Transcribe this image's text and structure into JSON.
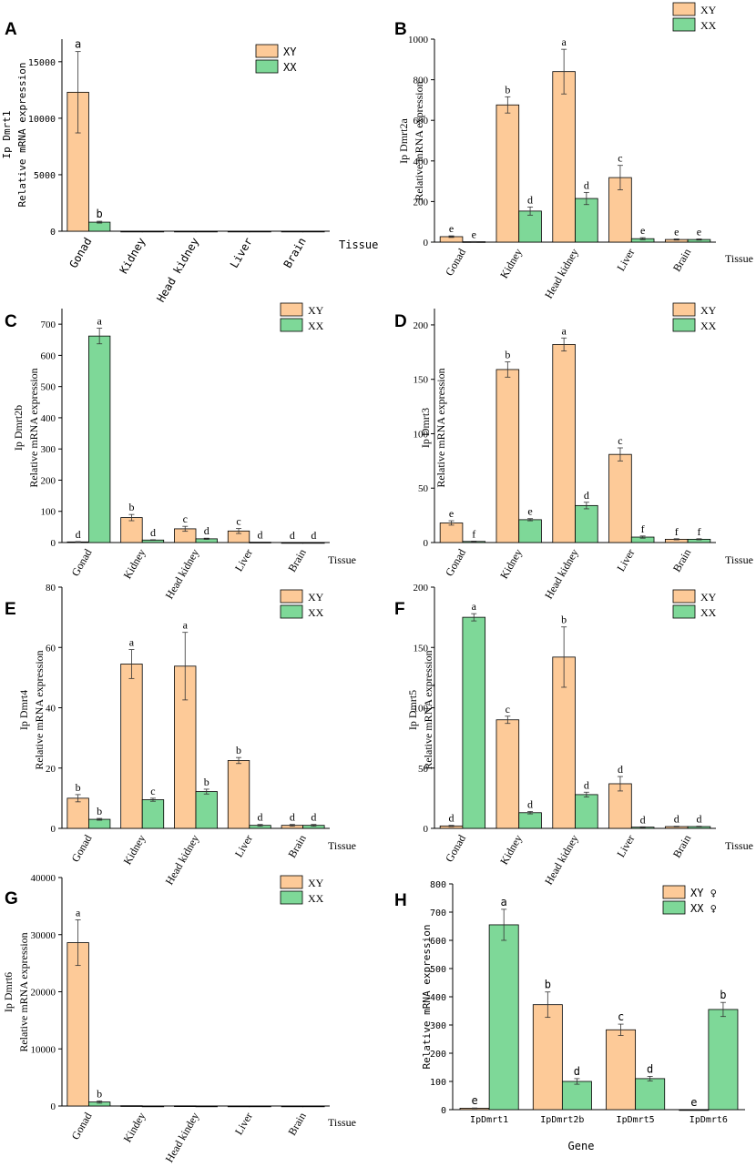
{
  "colors": {
    "xy": "#FDCA98",
    "xx": "#7ED898",
    "axis": "#000000"
  },
  "chart_data": [
    {
      "panel": "A",
      "type": "bar",
      "font": "mono",
      "ylabel_lines": [
        "Ip Dmrt1",
        "Relative mRNA expression"
      ],
      "xlabel": "Tissue",
      "categories": [
        "Gonad",
        "Kidney",
        "Head kidney",
        "Liver",
        "Brain"
      ],
      "ylim": [
        0,
        17000
      ],
      "yticks": [
        0,
        5000,
        10000,
        15000
      ],
      "legend": [
        "XY",
        "XX"
      ],
      "series": [
        {
          "name": "XY",
          "values": [
            12300,
            0,
            0,
            0,
            0
          ],
          "errors": [
            3600,
            0,
            0,
            0,
            0
          ],
          "labels": [
            "a",
            "",
            "",
            "",
            ""
          ]
        },
        {
          "name": "XX",
          "values": [
            800,
            0,
            0,
            0,
            0
          ],
          "errors": [
            80,
            0,
            0,
            0,
            0
          ],
          "labels": [
            "b",
            "",
            "",
            "",
            ""
          ]
        }
      ]
    },
    {
      "panel": "B",
      "type": "bar",
      "font": "serif",
      "ylabel_lines": [
        "Ip Dmrt2a",
        "Relative mRNA expression"
      ],
      "xlabel": "Tissue",
      "categories": [
        "Gonad",
        "Kidney",
        "Head kidney",
        "Liver",
        "Brain"
      ],
      "ylim": [
        0,
        1000
      ],
      "yticks": [
        0,
        200,
        400,
        600,
        800,
        1000
      ],
      "legend": [
        "XY",
        "XX"
      ],
      "series": [
        {
          "name": "XY",
          "values": [
            27,
            676,
            840,
            318,
            13
          ],
          "errors": [
            4,
            40,
            110,
            60,
            3
          ],
          "labels": [
            "e",
            "b",
            "a",
            "c",
            "e"
          ]
        },
        {
          "name": "XX",
          "values": [
            2,
            153,
            215,
            17,
            13
          ],
          "errors": [
            1,
            20,
            30,
            5,
            3
          ],
          "labels": [
            "e",
            "d",
            "d",
            "e",
            "e"
          ]
        }
      ]
    },
    {
      "panel": "C",
      "type": "bar",
      "font": "serif",
      "ylabel_lines": [
        "Ip Dmrt2b",
        "Relative mRNA expression"
      ],
      "xlabel": "Tissue",
      "categories": [
        "Gonad",
        "Kidney",
        "Head kidney",
        "Liver",
        "Brain"
      ],
      "ylim": [
        0,
        750
      ],
      "yticks": [
        0,
        100,
        200,
        300,
        400,
        500,
        600,
        700
      ],
      "legend": [
        "XY",
        "XX"
      ],
      "series": [
        {
          "name": "XY",
          "values": [
            2,
            80,
            44,
            37,
            0
          ],
          "errors": [
            1,
            10,
            8,
            8,
            0
          ],
          "labels": [
            "d",
            "b",
            "c",
            "c",
            "d"
          ]
        },
        {
          "name": "XX",
          "values": [
            662,
            8,
            12,
            1,
            0
          ],
          "errors": [
            25,
            1,
            2,
            0,
            0
          ],
          "labels": [
            "a",
            "d",
            "d",
            "d",
            "d"
          ]
        }
      ]
    },
    {
      "panel": "D",
      "type": "bar",
      "font": "serif",
      "ylabel_lines": [
        "Ip Dmrt3",
        "Relative mRNA expression"
      ],
      "xlabel": "Tissue",
      "categories": [
        "Gonad",
        "Kidney",
        "Head kidney",
        "Liver",
        "Brain"
      ],
      "ylim": [
        0,
        215
      ],
      "yticks": [
        0,
        50,
        100,
        150,
        200
      ],
      "legend": [
        "XY",
        "XX"
      ],
      "series": [
        {
          "name": "XY",
          "values": [
            18,
            159,
            182,
            81,
            3
          ],
          "errors": [
            2,
            7,
            6,
            6,
            0.5
          ],
          "labels": [
            "e",
            "b",
            "a",
            "c",
            "f"
          ]
        },
        {
          "name": "XX",
          "values": [
            1,
            21,
            34,
            5,
            3
          ],
          "errors": [
            0.3,
            1,
            3,
            1,
            0.5
          ],
          "labels": [
            "f",
            "e",
            "d",
            "f",
            "f"
          ]
        }
      ]
    },
    {
      "panel": "E",
      "type": "bar",
      "font": "serif",
      "ylabel_lines": [
        "Ip Dmrt4",
        "Relative mRNA expression"
      ],
      "xlabel": "Tissue",
      "categories": [
        "Gonad",
        "Kidney",
        "Head kidney",
        "Liver",
        "Brain"
      ],
      "ylim": [
        0,
        80
      ],
      "yticks": [
        0,
        20,
        40,
        60,
        80
      ],
      "legend": [
        "XY",
        "XX"
      ],
      "series": [
        {
          "name": "XY",
          "values": [
            10,
            54.5,
            53.8,
            22.5,
            1
          ],
          "errors": [
            1.2,
            4.8,
            11.2,
            1,
            0.3
          ],
          "labels": [
            "b",
            "a",
            "a",
            "b",
            "d"
          ]
        },
        {
          "name": "XX",
          "values": [
            3,
            9.5,
            12.2,
            1,
            1
          ],
          "errors": [
            0.3,
            0.5,
            0.8,
            0.3,
            0.3
          ],
          "labels": [
            "b",
            "c",
            "b",
            "d",
            "d"
          ]
        }
      ]
    },
    {
      "panel": "F",
      "type": "bar",
      "font": "serif",
      "ylabel_lines": [
        "Ip Dmrt5",
        "Relative mRNA expression"
      ],
      "xlabel": "Tissue",
      "categories": [
        "Gonad",
        "Kidney",
        "Head kidney",
        "Liver",
        "Brain"
      ],
      "ylim": [
        0,
        200
      ],
      "yticks": [
        0,
        50,
        100,
        150,
        200
      ],
      "legend": [
        "XY",
        "XX"
      ],
      "series": [
        {
          "name": "XY",
          "values": [
            2,
            90,
            142,
            37,
            1.5
          ],
          "errors": [
            0.5,
            3,
            25,
            6,
            0.3
          ],
          "labels": [
            "d",
            "c",
            "b",
            "d",
            "d"
          ]
        },
        {
          "name": "XX",
          "values": [
            175,
            13,
            28,
            1,
            1.5
          ],
          "errors": [
            3,
            1,
            2,
            0.3,
            0.3
          ],
          "labels": [
            "a",
            "d",
            "d",
            "d",
            "d"
          ]
        }
      ]
    },
    {
      "panel": "G",
      "type": "bar",
      "font": "serif",
      "ylabel_lines": [
        "Ip Dmrt6",
        "Relative mRNA expression"
      ],
      "xlabel": "Tissue",
      "categories": [
        "Gonad",
        "Kindey",
        "Head kindey",
        "Liver",
        "Brain"
      ],
      "ylim": [
        0,
        40000
      ],
      "yticks": [
        0,
        10000,
        20000,
        30000,
        40000
      ],
      "legend": [
        "XY",
        "XX"
      ],
      "series": [
        {
          "name": "XY",
          "values": [
            28600,
            50,
            30,
            0,
            0
          ],
          "errors": [
            4000,
            0,
            0,
            0,
            0
          ],
          "labels": [
            "a",
            "",
            "",
            "",
            ""
          ]
        },
        {
          "name": "XX",
          "values": [
            700,
            0,
            0,
            0,
            0
          ],
          "errors": [
            200,
            0,
            0,
            0,
            0
          ],
          "labels": [
            "b",
            "",
            "",
            "",
            ""
          ]
        }
      ]
    },
    {
      "panel": "H",
      "type": "bar",
      "font": "mono",
      "ylabel_lines": [
        "Relative mRNA expression"
      ],
      "xlabel": "Gene",
      "categories": [
        "IpDmrt1",
        "IpDmrt2b",
        "IpDmrt5",
        "IpDmrt6"
      ],
      "ylim": [
        0,
        800
      ],
      "yticks": [
        0,
        100,
        200,
        300,
        400,
        500,
        600,
        700,
        800
      ],
      "legend": [
        "XY ♀",
        "XX ♀"
      ],
      "series": [
        {
          "name": "XY ♀",
          "values": [
            5,
            372,
            283,
            0
          ],
          "errors": [
            1,
            45,
            20,
            0
          ],
          "labels": [
            "e",
            "b",
            "c",
            "e"
          ]
        },
        {
          "name": "XX ♀",
          "values": [
            655,
            100,
            110,
            355
          ],
          "errors": [
            55,
            10,
            8,
            25
          ],
          "labels": [
            "a",
            "d",
            "d",
            "b"
          ]
        }
      ]
    }
  ]
}
